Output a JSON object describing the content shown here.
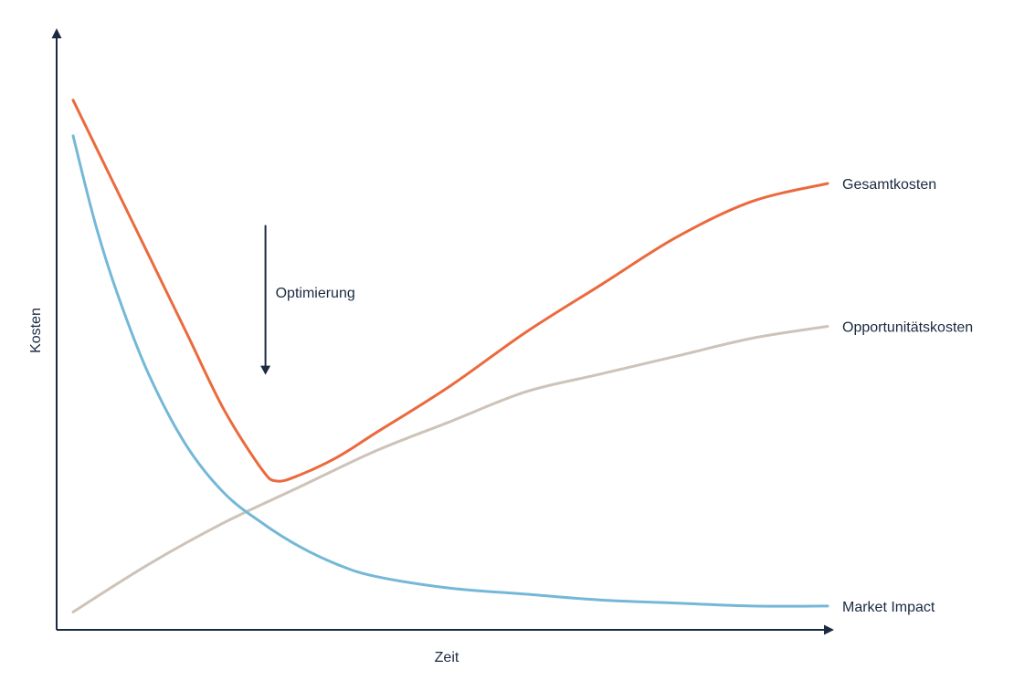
{
  "chart_data": {
    "type": "line",
    "xlabel": "Zeit",
    "ylabel": "Kosten",
    "xlim": [
      0,
      100
    ],
    "ylim": [
      0,
      100
    ],
    "grid": false,
    "legend": "inline-right",
    "series": [
      {
        "name": "Gesamtkosten",
        "color": "#eb6a3d",
        "x": [
          0,
          5,
          10,
          15,
          20,
          25,
          27,
          30,
          35,
          40,
          50,
          60,
          70,
          80,
          90,
          100
        ],
        "y": [
          89,
          76,
          63,
          50,
          37,
          27,
          25,
          26,
          29,
          33,
          41,
          50,
          58,
          66,
          72,
          75
        ]
      },
      {
        "name": "Opportunitätskosten",
        "color": "#cdc3b9",
        "x": [
          0,
          10,
          20,
          30,
          40,
          50,
          60,
          70,
          80,
          90,
          100
        ],
        "y": [
          3,
          11,
          18,
          24,
          30,
          35,
          40,
          43,
          46,
          49,
          51
        ]
      },
      {
        "name": "Market Impact",
        "color": "#74b8d8",
        "x": [
          0,
          3,
          6,
          10,
          15,
          20,
          25,
          30,
          35,
          40,
          50,
          60,
          70,
          80,
          90,
          100
        ],
        "y": [
          83,
          68,
          56,
          43,
          31,
          23,
          18,
          14,
          11,
          9,
          7,
          6,
          5,
          4.5,
          4,
          4
        ]
      }
    ],
    "annotations": [
      {
        "text": "Optimierung",
        "type": "down-arrow",
        "x": 25.5,
        "y_from": 68,
        "y_to": 43
      }
    ]
  }
}
